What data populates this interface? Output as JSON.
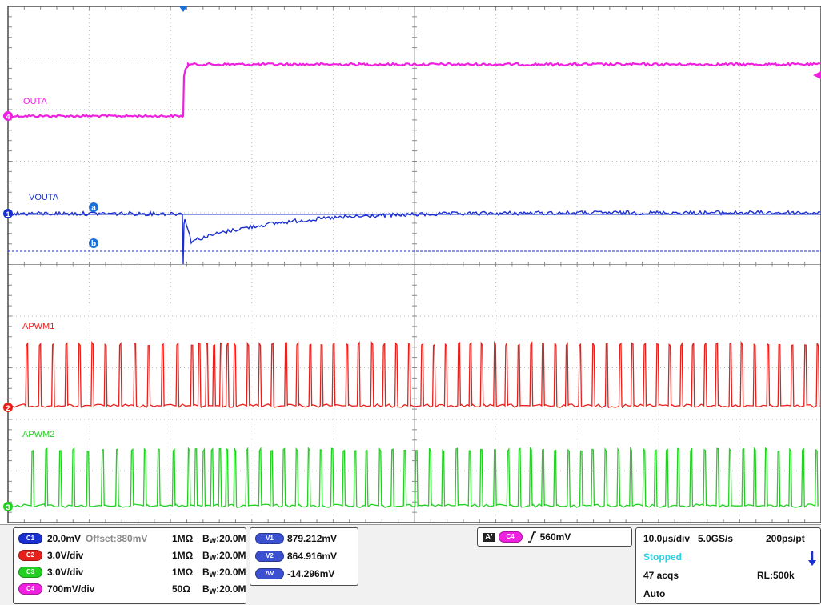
{
  "colors": {
    "ch1": "#1a2fd0",
    "ch2": "#e8201c",
    "ch3": "#22d022",
    "ch4": "#f020e0",
    "stopped": "#27d3e6",
    "pill_v": "#3b4fd1"
  },
  "traces": [
    {
      "channel": "1",
      "label": "VOUTA"
    },
    {
      "channel": "2",
      "label": "APWM1"
    },
    {
      "channel": "3",
      "label": "APWM2"
    },
    {
      "channel": "4",
      "label": "IOUTA"
    }
  ],
  "cursors": {
    "a": "a",
    "b": "b"
  },
  "channel_settings": [
    {
      "pill": "C1",
      "scale": "20.0mV",
      "offset": "Offset:880mV",
      "impedance": "1MΩ",
      "bw_prefix": "B",
      "bw_sub": "W",
      "bw_value": ":20.0M"
    },
    {
      "pill": "C2",
      "scale": "3.0V/div",
      "offset": "",
      "impedance": "1MΩ",
      "bw_prefix": "B",
      "bw_sub": "W",
      "bw_value": ":20.0M"
    },
    {
      "pill": "C3",
      "scale": "3.0V/div",
      "offset": "",
      "impedance": "1MΩ",
      "bw_prefix": "B",
      "bw_sub": "W",
      "bw_value": ":20.0M"
    },
    {
      "pill": "C4",
      "scale": "700mV/div",
      "offset": "",
      "impedance": "50Ω",
      "bw_prefix": "B",
      "bw_sub": "W",
      "bw_value": ":20.0M"
    }
  ],
  "cursor_readout": [
    {
      "pill": "V1",
      "value": "879.212mV"
    },
    {
      "pill": "V2",
      "value": "864.916mV"
    },
    {
      "pill": "ΔV",
      "value": "-14.296mV"
    }
  ],
  "trigger": {
    "badge": "A'",
    "source": "C4",
    "level": "560mV"
  },
  "acquisition": {
    "timebase": "10.0μs/div",
    "sample_rate": "5.0GS/s",
    "resolution": "200ps/pt",
    "state": "Stopped",
    "acqs": "47 acqs",
    "record_length": "RL:500k",
    "mode": "Auto"
  }
}
